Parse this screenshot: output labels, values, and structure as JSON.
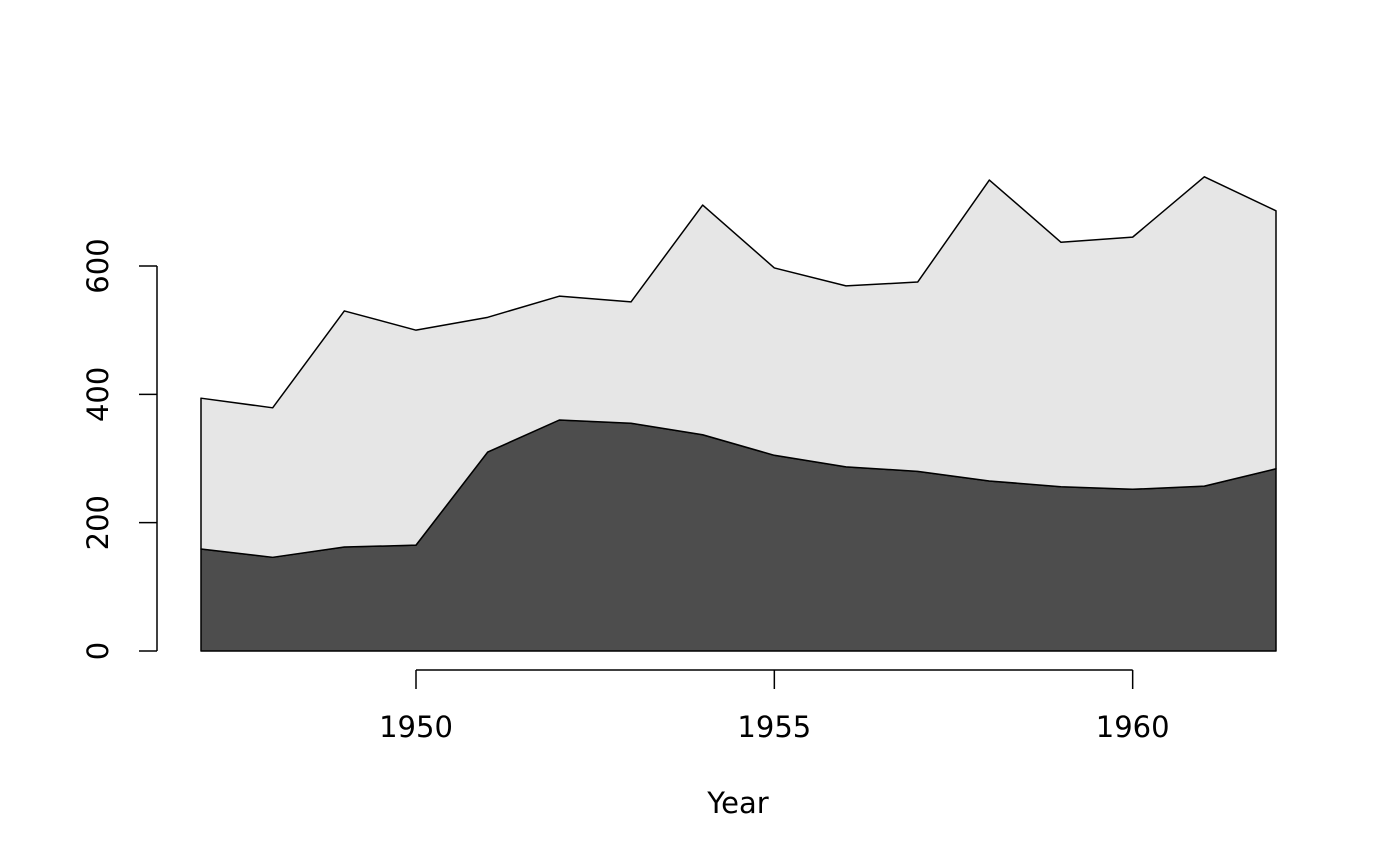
{
  "chart_data": {
    "type": "stacked-area",
    "x_label": "Year",
    "x": [
      1947,
      1948,
      1949,
      1950,
      1951,
      1952,
      1953,
      1954,
      1955,
      1956,
      1957,
      1958,
      1959,
      1960,
      1961,
      1962
    ],
    "series": [
      {
        "color": "#4d4d4d",
        "values": [
          159,
          146,
          162,
          165,
          310,
          360,
          355,
          337,
          305,
          287,
          280,
          265,
          256,
          252,
          257,
          284
        ]
      },
      {
        "color": "#e6e6e6",
        "values": [
          235,
          233,
          368,
          335,
          210,
          193,
          189,
          358,
          292,
          282,
          295,
          469,
          381,
          393,
          482,
          402
        ]
      }
    ],
    "xlim": [
      1947,
      1962
    ],
    "xticks": [
      1950,
      1955,
      1960
    ],
    "ylim": [
      0,
      800
    ],
    "yticks": [
      0,
      200,
      400,
      600
    ]
  }
}
